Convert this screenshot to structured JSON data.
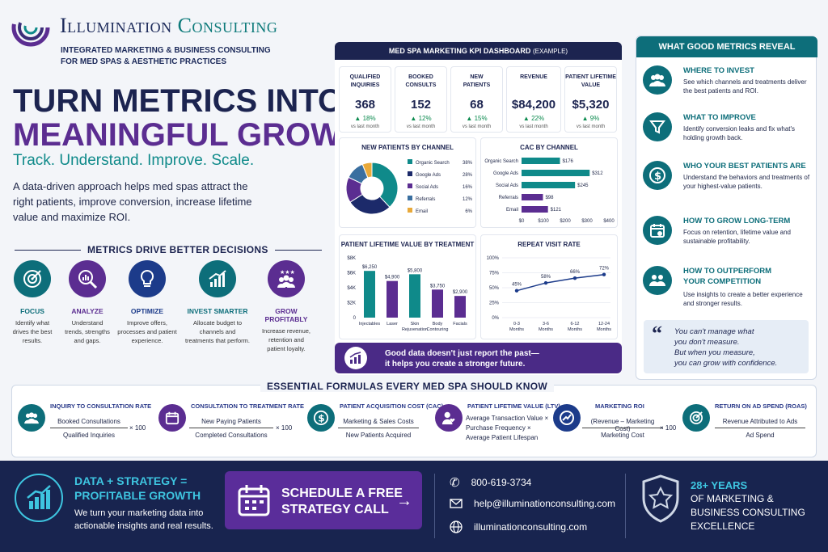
{
  "header": {
    "brand_word1": "Illumination",
    "brand_word2": "Consulting",
    "tagline_line1": "INTEGRATED MARKETING & BUSINESS CONSULTING",
    "tagline_line2": "FOR MED SPAS & AESTHETIC PRACTICES"
  },
  "hero": {
    "title_line1": "TURN METRICS INTO",
    "title_line2": "MEANINGFUL GROWTH",
    "subtitle": "Track. Understand. Improve. Scale.",
    "intro": "A data-driven approach helps med spas attract the right patients, improve conversion, increase lifetime value and maximize ROI."
  },
  "metrics_section": {
    "title": "METRICS DRIVE BETTER DECISIONS",
    "items": [
      {
        "title": "FOCUS",
        "desc": "Identify what drives the best results.",
        "icon": "target-icon",
        "color": "#0d6e7a"
      },
      {
        "title": "ANALYZE",
        "desc": "Understand trends, strengths and gaps.",
        "icon": "magnify-chart-icon",
        "color": "#5b2d91"
      },
      {
        "title": "OPTIMIZE",
        "desc": "Improve offers, processes and patient experience.",
        "icon": "lightbulb-icon",
        "color": "#1c3b8a"
      },
      {
        "title": "INVEST SMARTER",
        "desc": "Allocate budget to channels and treatments that perform.",
        "icon": "growth-chart-icon",
        "color": "#0d6e7a"
      },
      {
        "title": "GROW PROFITABLY",
        "desc": "Increase revenue, retention and patient loyalty.",
        "icon": "group-stars-icon",
        "color": "#5b2d91"
      }
    ]
  },
  "dashboard": {
    "title": "MED SPA MARKETING KPI DASHBOARD",
    "title_suffix": "(EXAMPLE)",
    "kpis": [
      {
        "label": "QUALIFIED INQUIRIES",
        "value": "368",
        "change": "18%",
        "note": "vs last month"
      },
      {
        "label": "BOOKED CONSULTS",
        "value": "152",
        "change": "12%",
        "note": "vs last month"
      },
      {
        "label": "NEW PATIENTS",
        "value": "68",
        "change": "15%",
        "note": "vs last month"
      },
      {
        "label": "REVENUE",
        "value": "$84,200",
        "change": "22%",
        "note": "vs last month"
      },
      {
        "label": "PATIENT LIFETIME VALUE",
        "value": "$5,320",
        "change": "9%",
        "note": "vs last month"
      }
    ],
    "banner_line1": "Good data doesn't just report the past—",
    "banner_line2": "it helps you create a stronger future."
  },
  "chart_data": [
    {
      "type": "pie",
      "title": "NEW PATIENTS BY CHANNEL",
      "categories": [
        "Organic Search",
        "Google Ads",
        "Social Ads",
        "Referrals",
        "Email"
      ],
      "values": [
        38,
        28,
        16,
        12,
        6
      ],
      "labels": [
        "38%",
        "28%",
        "16%",
        "12%",
        "6%"
      ],
      "colors": [
        "#0f8a8a",
        "#1c2a6a",
        "#5b2d91",
        "#3a6fa0",
        "#e8a93a"
      ]
    },
    {
      "type": "bar",
      "orientation": "horizontal",
      "title": "CAC BY CHANNEL",
      "categories": [
        "Organic Search",
        "Google Ads",
        "Social Ads",
        "Referrals",
        "Email"
      ],
      "values": [
        176,
        312,
        245,
        98,
        121
      ],
      "labels": [
        "$176",
        "$312",
        "$245",
        "$98",
        "$121"
      ],
      "colors": [
        "#0f8a8a",
        "#0f8a8a",
        "#0f8a8a",
        "#5b2d91",
        "#5b2d91"
      ],
      "xticks": [
        "$0",
        "$100",
        "$200",
        "$300",
        "$400"
      ],
      "xlim": [
        0,
        400
      ]
    },
    {
      "type": "bar",
      "title": "PATIENT LIFETIME VALUE BY TREATMENT",
      "categories": [
        "Injectables",
        "Laser",
        "Skin Rejuvenation",
        "Body Contouring",
        "Facials"
      ],
      "values": [
        6250,
        4900,
        5800,
        3750,
        2900
      ],
      "labels": [
        "$6,250",
        "$4,900",
        "$5,800",
        "$3,750",
        "$2,900"
      ],
      "colors": [
        "#0f8a8a",
        "#5b2d91",
        "#0f8a8a",
        "#5b2d91",
        "#5b2d91"
      ],
      "yticks": [
        "0",
        "$2K",
        "$4K",
        "$6K",
        "$8K"
      ],
      "ylim": [
        0,
        8000
      ]
    },
    {
      "type": "line",
      "title": "REPEAT VISIT RATE",
      "categories": [
        "0-3 Months",
        "3-6 Months",
        "6-12 Months",
        "12-24 Months"
      ],
      "values": [
        45,
        58,
        66,
        72
      ],
      "labels": [
        "45%",
        "58%",
        "66%",
        "72%"
      ],
      "yticks": [
        "0%",
        "25%",
        "50%",
        "75%",
        "100%"
      ],
      "ylim": [
        0,
        100
      ],
      "color": "#1c3b8a"
    }
  ],
  "reveal": {
    "title": "WHAT GOOD METRICS REVEAL",
    "items": [
      {
        "title": "WHERE TO INVEST",
        "desc": "See which channels and treatments deliver the best patients and ROI.",
        "icon": "people-icon"
      },
      {
        "title": "WHAT TO IMPROVE",
        "desc": "Identify conversion leaks and fix what's holding growth back.",
        "icon": "funnel-icon"
      },
      {
        "title": "WHO YOUR BEST PATIENTS ARE",
        "desc": "Understand the behaviors and treatments of your highest-value patients.",
        "icon": "dollar-icon"
      },
      {
        "title": "HOW TO GROW LONG-TERM",
        "desc": "Focus on retention, lifetime value and sustainable profitability.",
        "icon": "calendar-icon"
      },
      {
        "title": "HOW TO OUTPERFORM YOUR COMPETITION",
        "desc": "Use insights to create a better experience and stronger results.",
        "icon": "group-heart-icon"
      }
    ],
    "quote_lines": [
      "You can't manage what",
      "you don't measure.",
      "But when you measure,",
      "you can grow with confidence."
    ]
  },
  "formulas": {
    "title": "ESSENTIAL FORMULAS EVERY MED SPA SHOULD KNOW",
    "items": [
      {
        "title": "INQUIRY TO CONSULTATION RATE",
        "num": "Booked Consultations",
        "den": "Qualified Inquiries",
        "mult": "× 100"
      },
      {
        "title": "CONSULTATION TO TREATMENT RATE",
        "num": "New Paying Patients",
        "den": "Completed Consultations",
        "mult": "× 100"
      },
      {
        "title": "PATIENT ACQUISITION COST (CAC)",
        "num": "Marketing & Sales Costs",
        "den": "New Patients Acquired",
        "mult": ""
      },
      {
        "title": "PATIENT LIFETIME VALUE (LTV)",
        "num": "Average Transaction Value ×",
        "num2": "Purchase Frequency ×",
        "num3": "Average Patient Lifespan",
        "den": "",
        "mult": ""
      },
      {
        "title": "MARKETING ROI",
        "num": "(Revenue – Marketing Cost)",
        "den": "Marketing Cost",
        "mult": "× 100"
      },
      {
        "title": "RETURN ON AD SPEND (ROAS)",
        "num": "Revenue Attributed to Ads",
        "den": "Ad Spend",
        "mult": ""
      }
    ]
  },
  "footer": {
    "heading_line1": "DATA + STRATEGY =",
    "heading_line2": "PROFITABLE GROWTH",
    "text": "We turn your marketing data into actionable insights and real results.",
    "cta_line1": "SCHEDULE A FREE",
    "cta_line2": "STRATEGY CALL",
    "phone": "800-619-3734",
    "email": "help@illuminationconsulting.com",
    "website": "illuminationconsulting.com",
    "years_line1": "28+ YEARS",
    "years_line2": "OF MARKETING &",
    "years_line3": "BUSINESS CONSULTING",
    "years_line4": "EXCELLENCE"
  }
}
